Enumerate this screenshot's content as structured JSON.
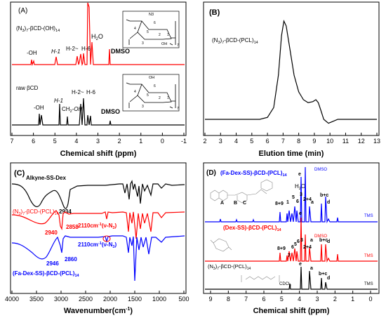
{
  "chart_data": [
    {
      "panel": "(A)",
      "type": "line",
      "title": "",
      "xlabel": "Chemical shift (ppm)",
      "xlim": [
        7,
        -1
      ],
      "x_ticks": [
        "7",
        "6",
        "5",
        "4",
        "3",
        "2",
        "1",
        "0",
        "-1"
      ],
      "series": [
        {
          "name": "(N3)7-βCD-(OH)14",
          "color": "#ff0000",
          "peaks_ppm": [
            5.8,
            5.7,
            4.85,
            3.72,
            3.55,
            3.4,
            3.3,
            2.5
          ],
          "peak_labels": [
            "-OH",
            "H-1",
            "H-2~H-6",
            "H2O",
            "DMSO"
          ]
        },
        {
          "name": "raw βCD",
          "color": "#000000",
          "peaks_ppm": [
            5.7,
            5.65,
            4.82,
            4.45,
            3.62,
            3.55,
            3.3,
            2.5
          ],
          "peak_labels": [
            "-OH",
            "H-1",
            "CH2-OH",
            "H-2~H-6",
            "DMSO"
          ]
        }
      ]
    },
    {
      "panel": "(B)",
      "type": "line",
      "title": "",
      "xlabel": "Elution time (min)",
      "xlim": [
        2,
        13
      ],
      "x_ticks": [
        "2",
        "3",
        "4",
        "5",
        "6",
        "7",
        "8",
        "9",
        "10",
        "11",
        "12",
        "13"
      ],
      "series": [
        {
          "name": "(N3)7-βCD-(PCL)14",
          "color": "#000000",
          "x": [
            2,
            5.5,
            6.0,
            6.4,
            6.7,
            6.9,
            7.05,
            7.2,
            7.4,
            7.7,
            8.0,
            8.3,
            8.6,
            8.9,
            9.1,
            9.25,
            9.4,
            9.6,
            9.9,
            10.2,
            10.5,
            11,
            13
          ],
          "y": [
            0,
            0,
            0.02,
            0.12,
            0.45,
            0.85,
            1.0,
            0.95,
            0.75,
            0.45,
            0.28,
            0.2,
            0.17,
            0.18,
            0.2,
            0.17,
            0.1,
            0.0,
            -0.04,
            -0.02,
            0,
            0,
            0
          ]
        }
      ]
    },
    {
      "panel": "(C)",
      "type": "line",
      "title": "",
      "xlabel": "Wavenumber(cm⁻¹)",
      "xlim": [
        4000,
        500
      ],
      "x_ticks": [
        "4000",
        "3500",
        "3000",
        "2500",
        "2000",
        "1500",
        "1000",
        "500"
      ],
      "series": [
        {
          "name": "Alkyne-SS-Dex",
          "color": "#000000",
          "marked_bands": [
            "2934"
          ]
        },
        {
          "name": "(N3)7-βCD-(PCL)14",
          "color": "#ff0000",
          "marked_bands": [
            "2940",
            "2858",
            "2110cm⁻¹(ν-N3)"
          ]
        },
        {
          "name": "(Fa-Dex-SS)-βCD-(PCL)14",
          "color": "#0000ff",
          "marked_bands": [
            "2946",
            "2860",
            "2110cm⁻¹(ν-N3)"
          ]
        }
      ],
      "annotations": [
        "2934",
        "2940",
        "2858",
        "2946",
        "2860",
        "2110cm⁻¹(ν-N3)"
      ]
    },
    {
      "panel": "(D)",
      "type": "line",
      "title": "",
      "xlabel": "Chemical shift (ppm)",
      "xlim": [
        9.5,
        -0.5
      ],
      "x_ticks": [
        "9",
        "8",
        "7",
        "6",
        "5",
        "4",
        "3",
        "2",
        "1",
        "0"
      ],
      "series": [
        {
          "name": "(Fa-Dex-SS)-βCD-(PCL)14",
          "color": "#0000ff",
          "peak_labels": [
            "A",
            "B",
            "C",
            "8+9",
            "1",
            "5",
            "6",
            "3",
            "2+4",
            "e",
            "a",
            "b+c",
            "d",
            "H2O",
            "DMSO",
            "TMS"
          ]
        },
        {
          "name": "(Dex-SS)-βCD-(PCL)14",
          "color": "#ff0000",
          "peak_labels": [
            "8+9",
            "7",
            "6",
            "5",
            "6",
            "3",
            "2+4",
            "e",
            "a",
            "b+c",
            "d",
            "DMSO",
            "TMS"
          ]
        },
        {
          "name": "(N3)7-βCD-(PCL)14",
          "color": "#000000",
          "peak_labels": [
            "CDCl3",
            "e",
            "a",
            "b+c",
            "d",
            "TMS"
          ]
        }
      ]
    }
  ],
  "labels": {
    "A": {
      "panel": "(A)",
      "red_name": "(N",
      "red_sub1": "3",
      "red_mid": ")",
      "red_sub2": "7",
      "red_rest": "-βCD-(OH)",
      "red_sub3": "14",
      "oh1": "-OH",
      "h1": "H-1",
      "h26": "H-2~",
      "h6": "H-6",
      "h2o": "H",
      "h2o_sub": "2",
      "h2o_o": "O",
      "dmso": "DMSO",
      "raw": "raw βCD",
      "oh2": "-OH",
      "h1b": "H-1",
      "ch2oh": "CH",
      "ch2oh_sub": "2",
      "ch2oh_rest": "-OH",
      "h26b": "H-2~",
      "h6b": "H-6",
      "dmso2": "DMSO",
      "xlabel": "Chemical shift (ppm)",
      "n3": "N3",
      "oh": "OH",
      "seven": "7",
      "r4": "4",
      "r6": "6",
      "r5": "5",
      "r3": "3",
      "r2": "2",
      "r1": "1",
      "xt": [
        "7",
        "6",
        "5",
        "4",
        "3",
        "2",
        "1",
        "0",
        "-1"
      ]
    },
    "B": {
      "panel": "(B)",
      "series": "(N",
      "s1": "3",
      "s2": ")",
      "s3": "7",
      "s4": "-βCD-(PCL)",
      "s5": "14",
      "xlabel": "Elution time (min)",
      "xt": [
        "2",
        "3",
        "4",
        "5",
        "6",
        "7",
        "8",
        "9",
        "10",
        "11",
        "12",
        "13"
      ]
    },
    "C": {
      "panel": "(C)",
      "alkyne": "Alkyne-SS-Dex",
      "v2934": "2934",
      "red": "(N",
      "r1": "3",
      "r2": ")",
      "r3": "7",
      "r4": "-βCD-(PCL)",
      "r5": "14",
      "v2940": "2940",
      "v2858": "2858",
      "red_ann": "2110cm",
      "red_ann_sup": "-1",
      "red_ann_rest": "(ν-N",
      "red_ann_sub": "3",
      "red_ann_end": ")",
      "blue_ann": "2110cm",
      "blue_ann_sup": "-1",
      "blue_ann_rest": "(ν-N",
      "blue_ann_sub": "3",
      "blue_ann_end": ")",
      "v2946": "2946",
      "v2860": "2860",
      "blue": "(Fa-Dex-SS)-βCD-(PCL)",
      "blue_sub": "14",
      "xlabel": "Wavenumber(cm",
      "xlabel_sup": "-1",
      "xlabel_end": ")",
      "xt": [
        "4000",
        "3500",
        "3000",
        "2500",
        "2000",
        "1500",
        "1000",
        "500"
      ]
    },
    "D": {
      "panel": "(D)",
      "blue": "(Fa-Dex-SS)-βCD-(PCL)",
      "blue_sub": "14",
      "dmso_b": "DMSO",
      "h2o": "H",
      "h2o_sub": "2",
      "h2o_o": "O",
      "e": "e",
      "a": "a",
      "bc": "b+c",
      "d": "d",
      "tms": "TMS",
      "A": "A",
      "B": "B",
      "C": "C",
      "p89": "8+9",
      "p1": "1",
      "p5": "5",
      "p6": "6",
      "p3": "3",
      "p24": "2+4",
      "red": "(Dex-SS)-βCD-(PCL)",
      "red_sub": "14",
      "dmso_r": "DMSO",
      "p7": "7",
      "black": "(N",
      "k1": "3",
      "k2": ")",
      "k3": "7",
      "k4": "-βCD-(PCL)",
      "k5": "14",
      "cdcl3": "CDCl",
      "cdcl3_sub": "3",
      "xlabel": "Chemical shift (ppm)",
      "xt": [
        "9",
        "8",
        "7",
        "6",
        "5",
        "4",
        "3",
        "2",
        "1",
        "0"
      ]
    }
  }
}
